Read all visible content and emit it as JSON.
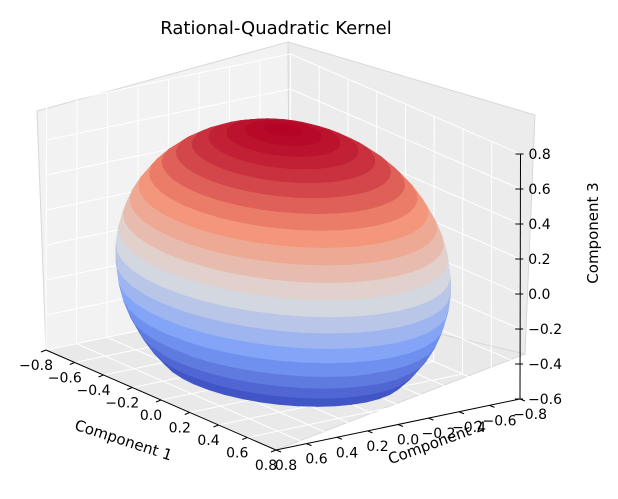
{
  "chart_data": {
    "type": "surface3d",
    "title": "Rational-Quadratic Kernel",
    "xlabel": "Component 1",
    "ylabel": "Component 2",
    "zlabel": "Component 3",
    "xlim": [
      -0.8,
      0.8
    ],
    "ylim": [
      -0.8,
      0.8
    ],
    "zlim": [
      -0.6,
      0.8
    ],
    "x_ticks": [
      "−0.8",
      "−0.6",
      "−0.4",
      "−0.2",
      "0.0",
      "0.2",
      "0.4",
      "0.6",
      "0.8"
    ],
    "y_ticks": [
      "−0.8",
      "−0.6",
      "−0.4",
      "−0.2",
      "0.0",
      "0.2",
      "0.4",
      "0.6",
      "0.8"
    ],
    "z_ticks": [
      "−0.6",
      "−0.4",
      "−0.2",
      "0.0",
      "0.2",
      "0.4",
      "0.6",
      "0.8"
    ],
    "surface": {
      "shape": "hemisphere (bowl)",
      "radius": 0.8,
      "z_range": [
        -0.55,
        0.8
      ],
      "colormap": "coolwarm"
    },
    "grid": true
  }
}
